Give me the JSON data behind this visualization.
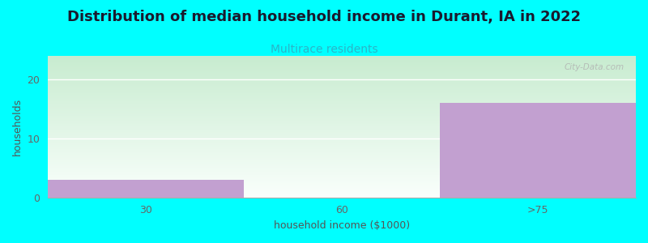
{
  "title": "Distribution of median household income in Durant, IA in 2022",
  "subtitle": "Multirace residents",
  "xlabel": "household income ($1000)",
  "ylabel": "households",
  "categories": [
    "30",
    "60",
    ">75"
  ],
  "values": [
    3,
    0,
    16
  ],
  "bar_color": "#c2a0d0",
  "bg_color": "#00ffff",
  "plot_bg_top": "#c8ecd0",
  "plot_bg_bottom": "#f8fff8",
  "ylim": [
    0,
    24
  ],
  "yticks": [
    0,
    10,
    20
  ],
  "title_fontsize": 13,
  "subtitle_fontsize": 10,
  "axis_label_fontsize": 9,
  "watermark": "City-Data.com"
}
